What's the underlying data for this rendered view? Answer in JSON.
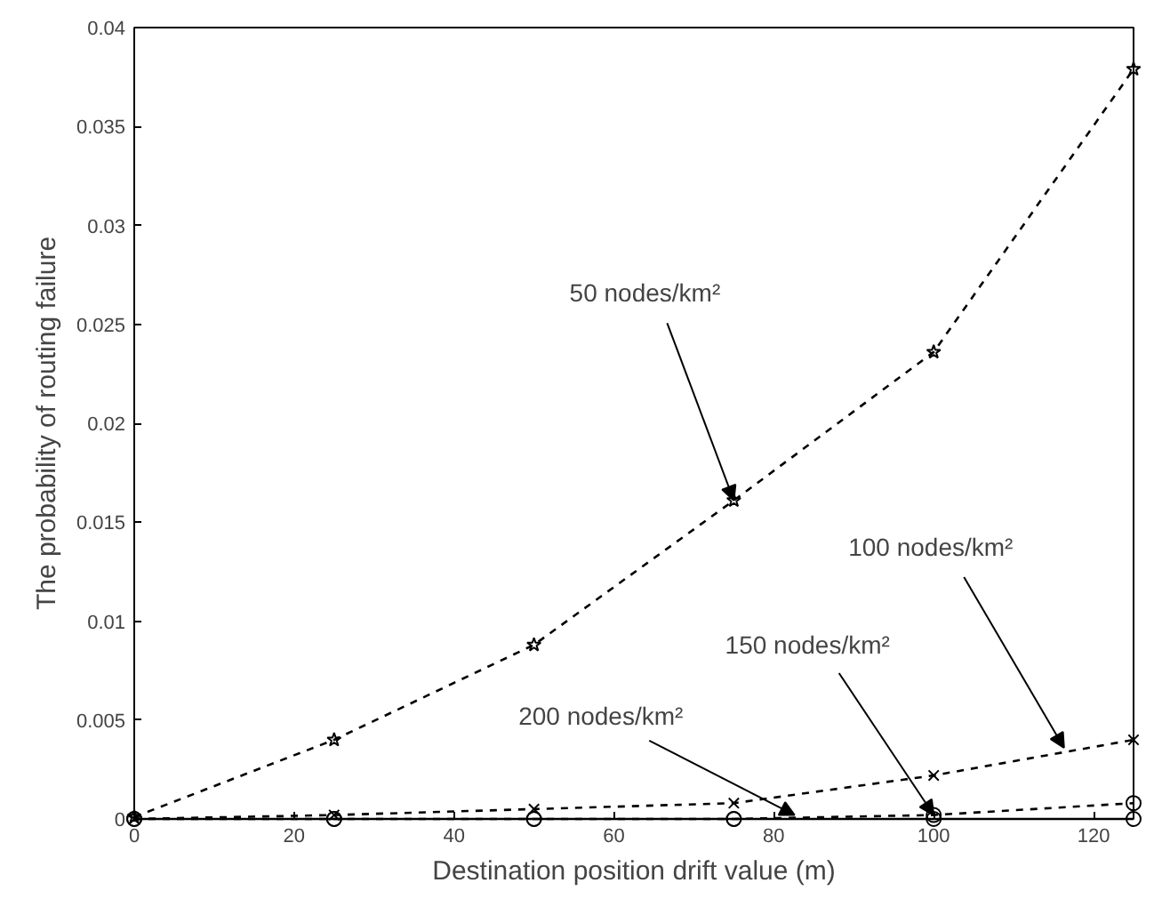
{
  "chart_data": {
    "type": "line",
    "xlabel": "Destination position drift value (m)",
    "ylabel": "The probability of routing failure",
    "x": [
      0,
      25,
      50,
      75,
      100,
      125
    ],
    "series": [
      {
        "color": "#000000",
        "marker": "star",
        "line_style": "dashed",
        "values": [
          0.0001,
          0.004,
          0.0088,
          0.0161,
          0.0236,
          0.0379
        ]
      },
      {
        "color": "#000000",
        "marker": "cross",
        "line_style": "dashed",
        "values": [
          0,
          0.0002,
          0.0005,
          0.0008,
          0.0022,
          0.004
        ]
      },
      {
        "color": "#000000",
        "marker": "circle",
        "line_style": "dashed",
        "values": [
          0,
          0,
          0,
          0,
          0.0002,
          0.0008
        ]
      },
      {
        "color": "#000000",
        "marker": "circle",
        "line_style": "solid",
        "values": [
          0,
          0,
          0,
          0,
          0,
          0
        ]
      }
    ],
    "xlim": [
      0,
      125
    ],
    "ylim": [
      0,
      0.04
    ],
    "xticks": [
      0,
      20,
      40,
      60,
      80,
      100,
      120
    ],
    "yticks": [
      0,
      0.005,
      0.01,
      0.015,
      0.02,
      0.025,
      0.03,
      0.035,
      0.04
    ],
    "grid": false,
    "annotations": [
      {
        "text": "50 nodes/km²",
        "x": 75,
        "y": 0.0161
      },
      {
        "text": "100 nodes/km²",
        "x": 116.3,
        "y": 0.0036
      },
      {
        "text": "150 nodes/km²",
        "x": 100,
        "y": 0.0002
      },
      {
        "text": "200 nodes/km²",
        "x": 82.6,
        "y": 0.0002
      }
    ]
  }
}
